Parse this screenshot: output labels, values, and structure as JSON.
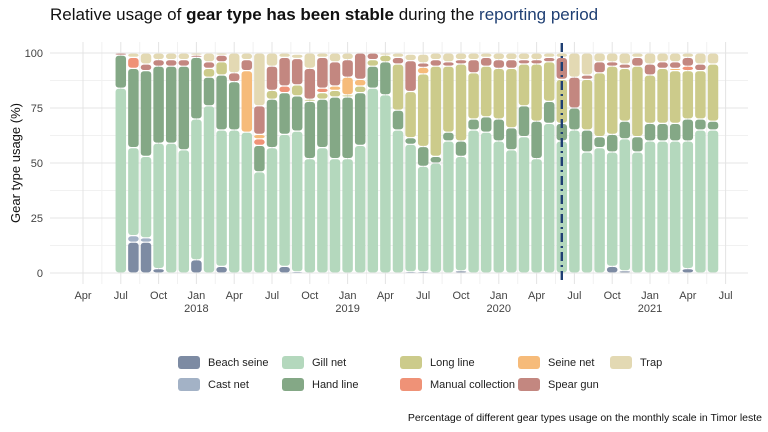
{
  "title": {
    "prefix": "Relative usage of ",
    "bold": "gear type has been stable",
    "middle": "  during the ",
    "accent": "reporting period",
    "accent_color": "#1f3f73"
  },
  "caption": "Percentage of different gear types usage on the monthly scale in Timor leste",
  "colors": {
    "beach": "#7d8ba3",
    "cast": "#a3b2c6",
    "gill": "#b4d8bd",
    "hand": "#84a886",
    "long": "#cccb8b",
    "manual": "#ef9277",
    "seine": "#f6bb7a",
    "spear": "#c38780",
    "trap": "#e3d9b3"
  },
  "chart_data": {
    "type": "bar",
    "stacked": true,
    "ylabel": "Gear type usage (%)",
    "ylim": [
      0,
      100
    ],
    "yticks": [
      0,
      25,
      50,
      75,
      100
    ],
    "grid": true,
    "legend_position": "bottom",
    "x_ticks": [
      {
        "month": "2017-04",
        "label": "Apr",
        "year": ""
      },
      {
        "month": "2017-07",
        "label": "Jul",
        "year": ""
      },
      {
        "month": "2017-10",
        "label": "Oct",
        "year": ""
      },
      {
        "month": "2018-01",
        "label": "Jan",
        "year": "2018"
      },
      {
        "month": "2018-04",
        "label": "Apr",
        "year": ""
      },
      {
        "month": "2018-07",
        "label": "Jul",
        "year": ""
      },
      {
        "month": "2018-10",
        "label": "Oct",
        "year": ""
      },
      {
        "month": "2019-01",
        "label": "Jan",
        "year": "2019"
      },
      {
        "month": "2019-04",
        "label": "Apr",
        "year": ""
      },
      {
        "month": "2019-07",
        "label": "Jul",
        "year": ""
      },
      {
        "month": "2019-10",
        "label": "Oct",
        "year": ""
      },
      {
        "month": "2020-01",
        "label": "Jan",
        "year": "2020"
      },
      {
        "month": "2020-04",
        "label": "Apr",
        "year": ""
      },
      {
        "month": "2020-07",
        "label": "Jul",
        "year": ""
      },
      {
        "month": "2020-10",
        "label": "Oct",
        "year": ""
      },
      {
        "month": "2021-01",
        "label": "Jan",
        "year": "2021"
      },
      {
        "month": "2021-04",
        "label": "Apr",
        "year": ""
      },
      {
        "month": "2021-07",
        "label": "Jul",
        "year": ""
      }
    ],
    "reference_line": {
      "month": "2020-06",
      "style": "dash-dot",
      "color": "#1f3f73"
    },
    "series": [
      {
        "key": "beach",
        "name": "Beach seine"
      },
      {
        "key": "cast",
        "name": "Cast net"
      },
      {
        "key": "gill",
        "name": "Gill net"
      },
      {
        "key": "hand",
        "name": "Hand line"
      },
      {
        "key": "long",
        "name": "Long line"
      },
      {
        "key": "manual",
        "name": "Manual collection"
      },
      {
        "key": "seine",
        "name": "Seine net"
      },
      {
        "key": "spear",
        "name": "Spear gun"
      },
      {
        "key": "trap",
        "name": "Trap"
      }
    ],
    "months": [
      "2017-07",
      "2017-08",
      "2017-09",
      "2017-10",
      "2017-11",
      "2017-12",
      "2018-01",
      "2018-02",
      "2018-03",
      "2018-04",
      "2018-05",
      "2018-06",
      "2018-07",
      "2018-08",
      "2018-09",
      "2018-10",
      "2018-11",
      "2018-12",
      "2019-01",
      "2019-02",
      "2019-03",
      "2019-04",
      "2019-05",
      "2019-06",
      "2019-07",
      "2019-08",
      "2019-09",
      "2019-10",
      "2019-11",
      "2019-12",
      "2020-01",
      "2020-02",
      "2020-03",
      "2020-04",
      "2020-05",
      "2020-06",
      "2020-07",
      "2020-08",
      "2020-09",
      "2020-10",
      "2020-11",
      "2020-12",
      "2021-01",
      "2021-02",
      "2021-03",
      "2021-04",
      "2021-05",
      "2021-06"
    ],
    "values": {
      "beach": [
        0,
        14,
        14,
        2,
        0,
        0,
        6,
        0,
        3,
        0,
        0,
        0,
        0,
        3,
        0.5,
        0,
        0,
        0,
        0,
        0,
        0,
        0,
        0,
        0.5,
        0.5,
        0,
        0,
        1,
        0,
        0,
        0,
        0,
        0,
        0,
        0,
        0,
        0,
        0,
        0,
        3,
        1,
        0,
        0,
        0,
        0,
        2,
        0,
        0
      ],
      "cast": [
        0,
        3,
        2,
        0,
        0,
        0,
        0,
        0,
        0,
        0,
        0,
        0,
        0,
        0,
        0,
        0,
        0,
        0,
        0,
        0,
        0,
        0,
        0,
        0,
        0,
        0,
        0,
        0,
        0,
        0,
        0,
        0,
        0,
        0,
        0,
        0,
        0,
        0,
        0,
        0,
        0,
        0,
        0,
        0,
        0,
        0,
        0,
        0
      ],
      "gill": [
        84,
        40,
        37,
        57,
        59,
        56,
        64,
        76,
        62,
        65,
        64,
        46,
        57,
        60,
        64,
        52,
        57,
        52,
        52,
        58,
        84,
        81,
        65,
        58,
        48,
        50,
        60,
        52,
        65,
        64,
        60,
        56,
        62,
        52,
        68,
        60,
        65,
        55,
        57,
        52,
        60,
        55,
        60,
        60,
        60,
        58,
        65,
        65
      ],
      "hand": [
        15,
        36,
        39,
        35,
        35,
        38,
        28,
        13,
        25,
        22,
        0,
        12,
        22,
        19,
        16,
        26,
        22,
        28,
        28,
        24,
        10,
        15,
        9,
        3,
        9,
        3,
        4,
        7,
        5,
        7,
        10,
        10,
        14,
        17,
        10,
        8,
        10,
        10,
        5,
        8,
        8,
        7,
        8,
        8,
        8,
        10,
        5,
        4
      ],
      "long": [
        0,
        0,
        0,
        0,
        0,
        0,
        0,
        4,
        6,
        0,
        0,
        0,
        4,
        0,
        5,
        1,
        3,
        3,
        1,
        3,
        3,
        3,
        21,
        21,
        33,
        41,
        30,
        35,
        21,
        23,
        23,
        27,
        19,
        26,
        18,
        20,
        0,
        23,
        29,
        31,
        24,
        32,
        22,
        25,
        24,
        22,
        22,
        26
      ],
      "manual": [
        0,
        5,
        0,
        0,
        0,
        0,
        0,
        0,
        0,
        0,
        0,
        3,
        0,
        3,
        0,
        0,
        2,
        0,
        0,
        0,
        0,
        0,
        0,
        0,
        0,
        0,
        0,
        0,
        0,
        0,
        0,
        0,
        0,
        0,
        0,
        0,
        0,
        0,
        0,
        0,
        0,
        0,
        0,
        0,
        0,
        2,
        0,
        0
      ],
      "seine": [
        0,
        0,
        0,
        0,
        0,
        0,
        0,
        0,
        0,
        0,
        28,
        2,
        0,
        0,
        0,
        0,
        0,
        2,
        8,
        3,
        0,
        0,
        0,
        0,
        3,
        0,
        0,
        0,
        0,
        0,
        0,
        0,
        0,
        0,
        0,
        0,
        0,
        0,
        0,
        0,
        0,
        0,
        0,
        0,
        1,
        0,
        0,
        0
      ],
      "spear": [
        1,
        0,
        3,
        3,
        3,
        3,
        1,
        3,
        3,
        4,
        5,
        13,
        11,
        13,
        12,
        14,
        14,
        11,
        8,
        12,
        3,
        0,
        3,
        14,
        2,
        3,
        2,
        2,
        6,
        4,
        4,
        4,
        2,
        2,
        2,
        10,
        14,
        2,
        5,
        2,
        2,
        4,
        5,
        3,
        3,
        4,
        3,
        0
      ],
      "trap": [
        0,
        2,
        5,
        3,
        3,
        3,
        1,
        4,
        1,
        9,
        3,
        24,
        6,
        2,
        2,
        7,
        2,
        4,
        3,
        0,
        0,
        1,
        2,
        3,
        4,
        3,
        4,
        3,
        3,
        2,
        3,
        3,
        3,
        3,
        2,
        2,
        11,
        10,
        4,
        4,
        5,
        2,
        5,
        4,
        4,
        2,
        5,
        5
      ]
    }
  }
}
